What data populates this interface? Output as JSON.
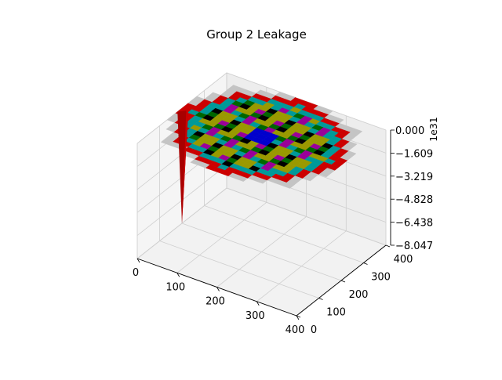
{
  "chart_data": {
    "type": "surface3d",
    "title": "Group 2 Leakage",
    "xlabel": "",
    "ylabel": "",
    "zlabel": "",
    "x_ticks": [
      "0",
      "100",
      "200",
      "300",
      "400"
    ],
    "y_ticks": [
      "0",
      "100",
      "200",
      "300",
      "400"
    ],
    "z_ticks": [
      "0.000",
      "−1.609",
      "−3.219",
      "−4.828",
      "−6.438",
      "−8.047"
    ],
    "z_offset_label": "1e31",
    "xlim": [
      0,
      420
    ],
    "ylim": [
      0,
      420
    ],
    "zlim": [
      -8.047e+31,
      0
    ],
    "grid": true,
    "spike": {
      "x": 420,
      "y": 210,
      "z": -8.047e+31
    },
    "grid_cells": 21,
    "colors": {
      "red": "#cc0000",
      "cyan": "#009999",
      "olive": "#999900",
      "green": "#006600",
      "magenta": "#990099",
      "blue": "#0000cc",
      "black": "#000000",
      "gray": "#c4c4c4"
    }
  }
}
